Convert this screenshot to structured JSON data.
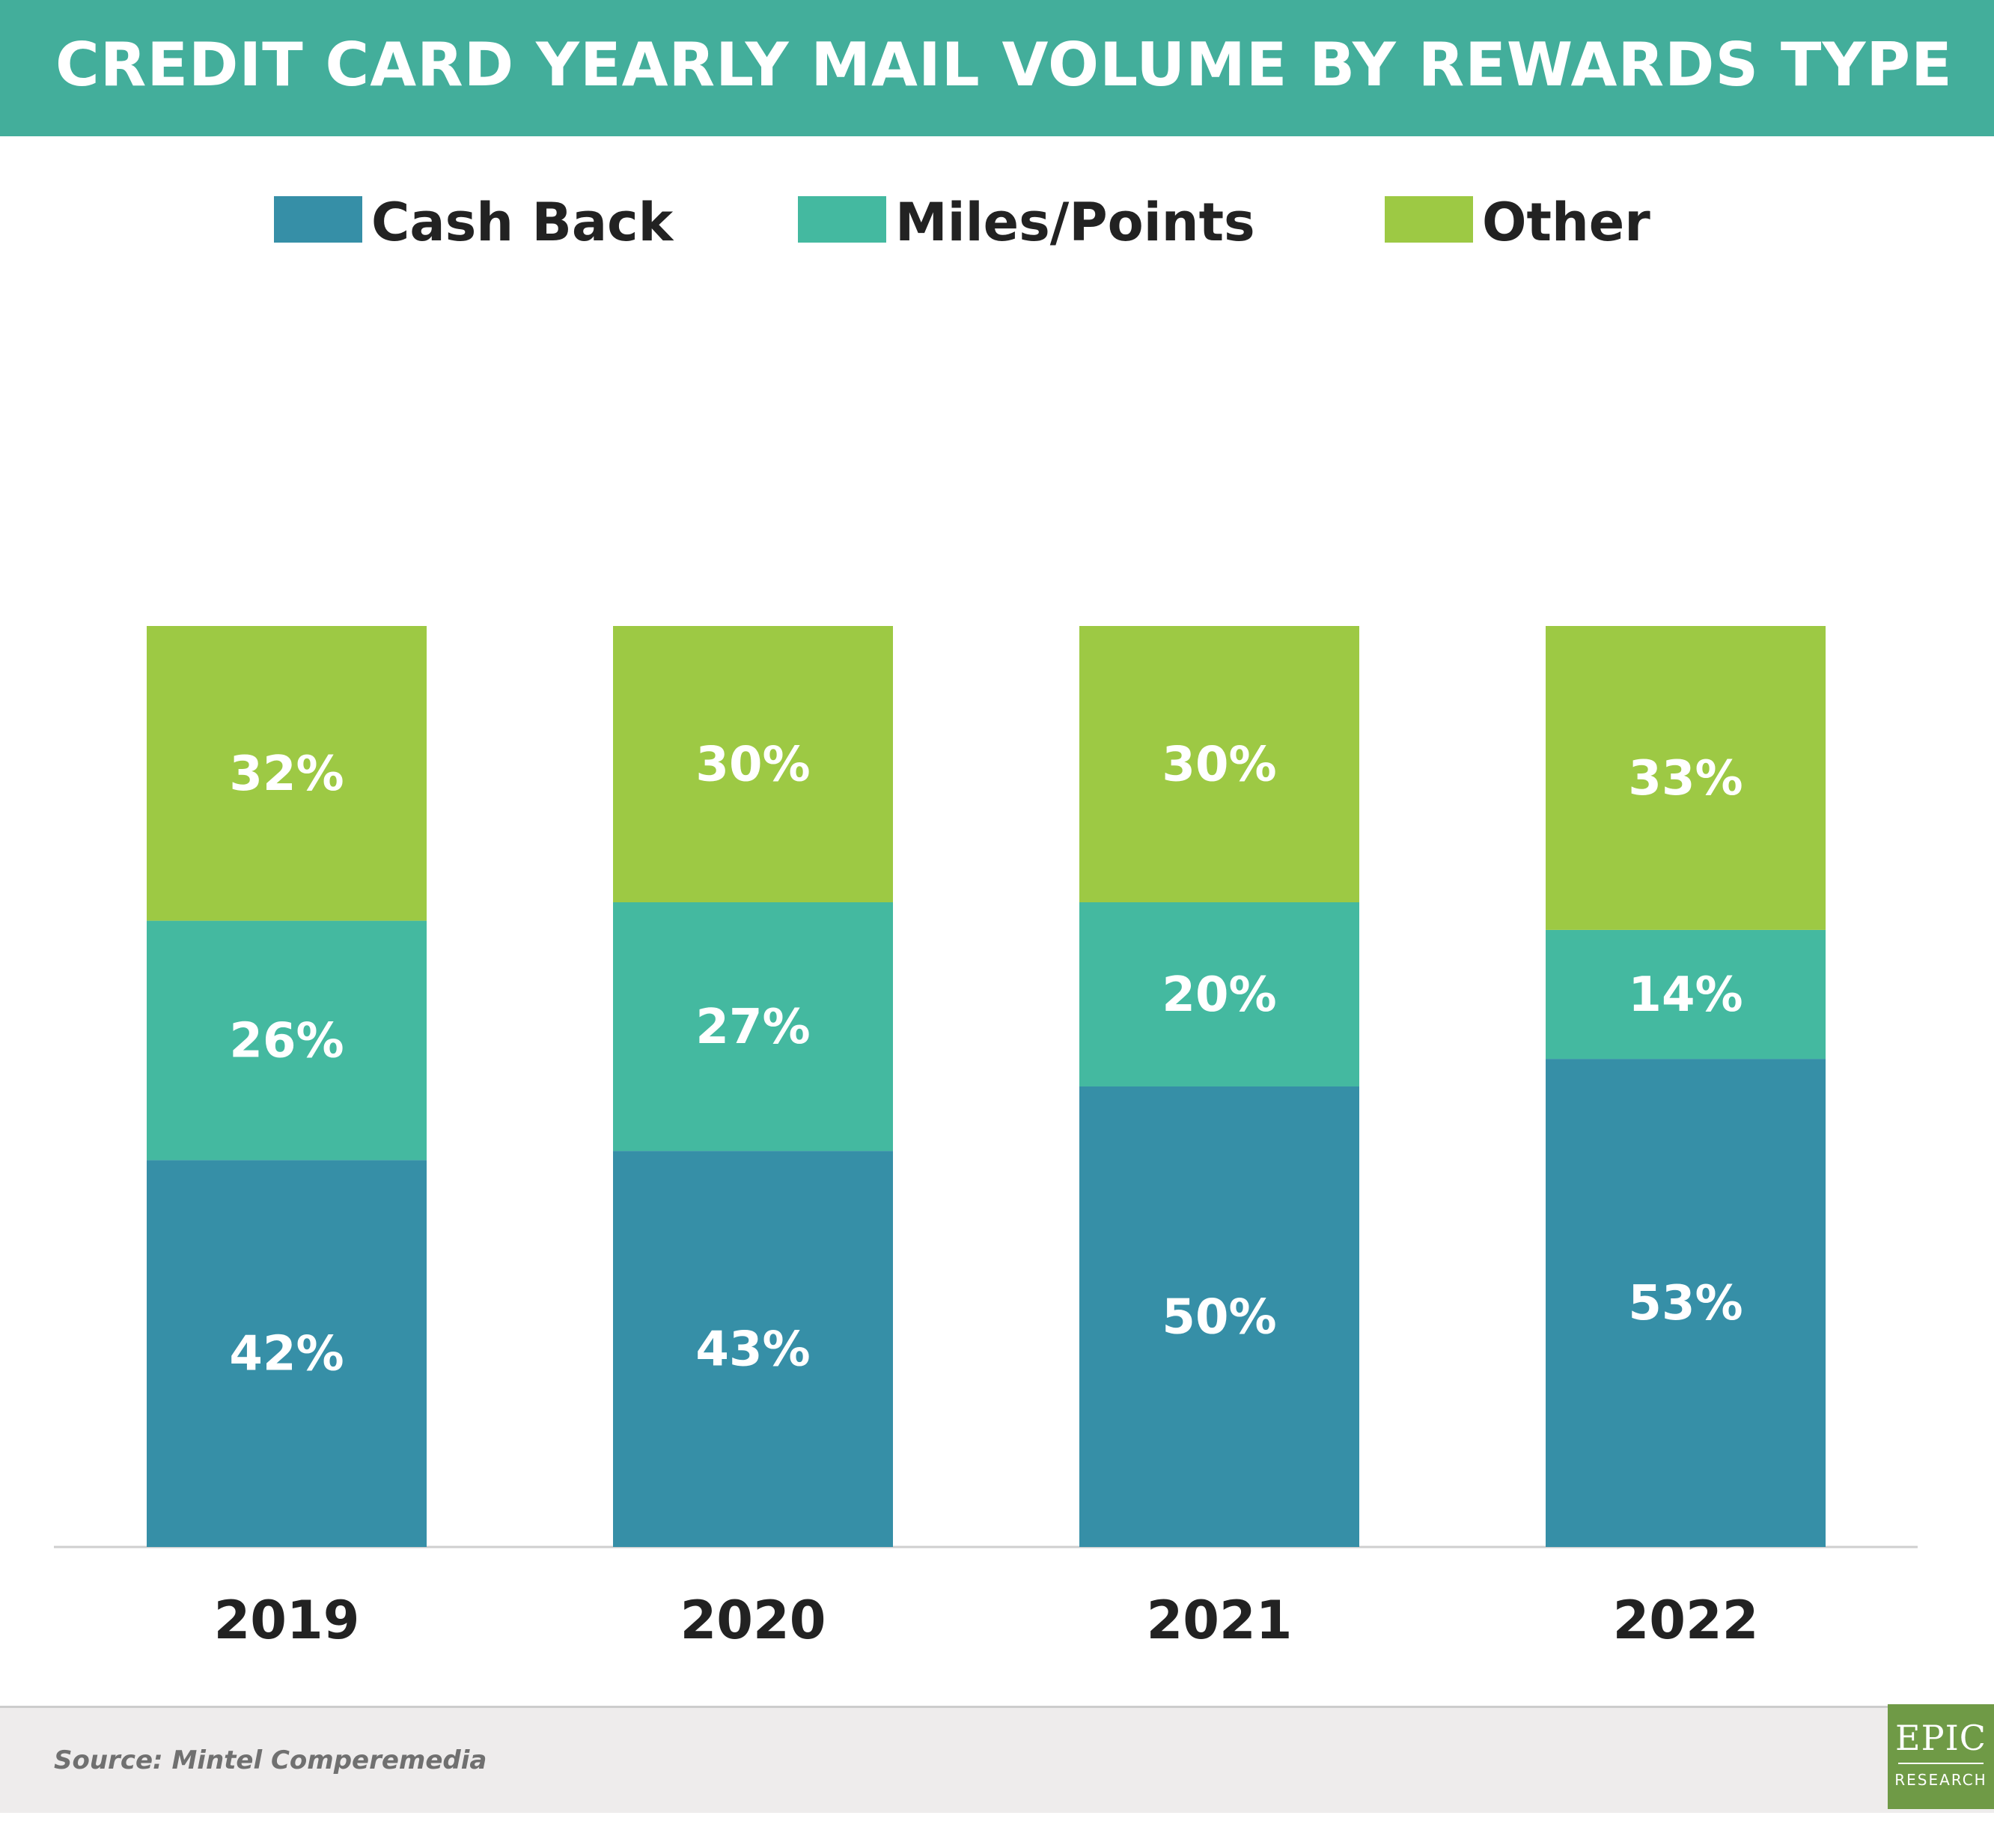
{
  "header": {
    "title": "CREDIT CARD YEARLY MAIL VOLUME BY REWARDS TYPE"
  },
  "legend": [
    {
      "label": "Cash Back",
      "color": "#368fa7"
    },
    {
      "label": "Miles/Points",
      "color": "#44b9a0"
    },
    {
      "label": "Other",
      "color": "#9dc944"
    }
  ],
  "chart_data": {
    "type": "bar",
    "stacked": true,
    "title": "CREDIT CARD YEARLY MAIL VOLUME BY REWARDS TYPE",
    "categories": [
      "2019",
      "2020",
      "2021",
      "2022"
    ],
    "series": [
      {
        "name": "Cash Back",
        "values": [
          42,
          43,
          50,
          53
        ],
        "labels": [
          "42%",
          "43%",
          "50%",
          "53%"
        ],
        "color": "#368fa7"
      },
      {
        "name": "Miles/Points",
        "values": [
          26,
          27,
          20,
          14
        ],
        "labels": [
          "26%",
          "27%",
          "20%",
          "14%"
        ],
        "color": "#44b9a0"
      },
      {
        "name": "Other",
        "values": [
          32,
          30,
          30,
          33
        ],
        "labels": [
          "32%",
          "30%",
          "30%",
          "33%"
        ],
        "color": "#9dc944"
      }
    ],
    "ylim": [
      0,
      100
    ],
    "grid": false,
    "legend_position": "top"
  },
  "footer": {
    "source": "Source: Mintel Comperemedia"
  },
  "logo": {
    "main": "EPIC",
    "sub": "RESEARCH",
    "color": "#6f9a46"
  }
}
